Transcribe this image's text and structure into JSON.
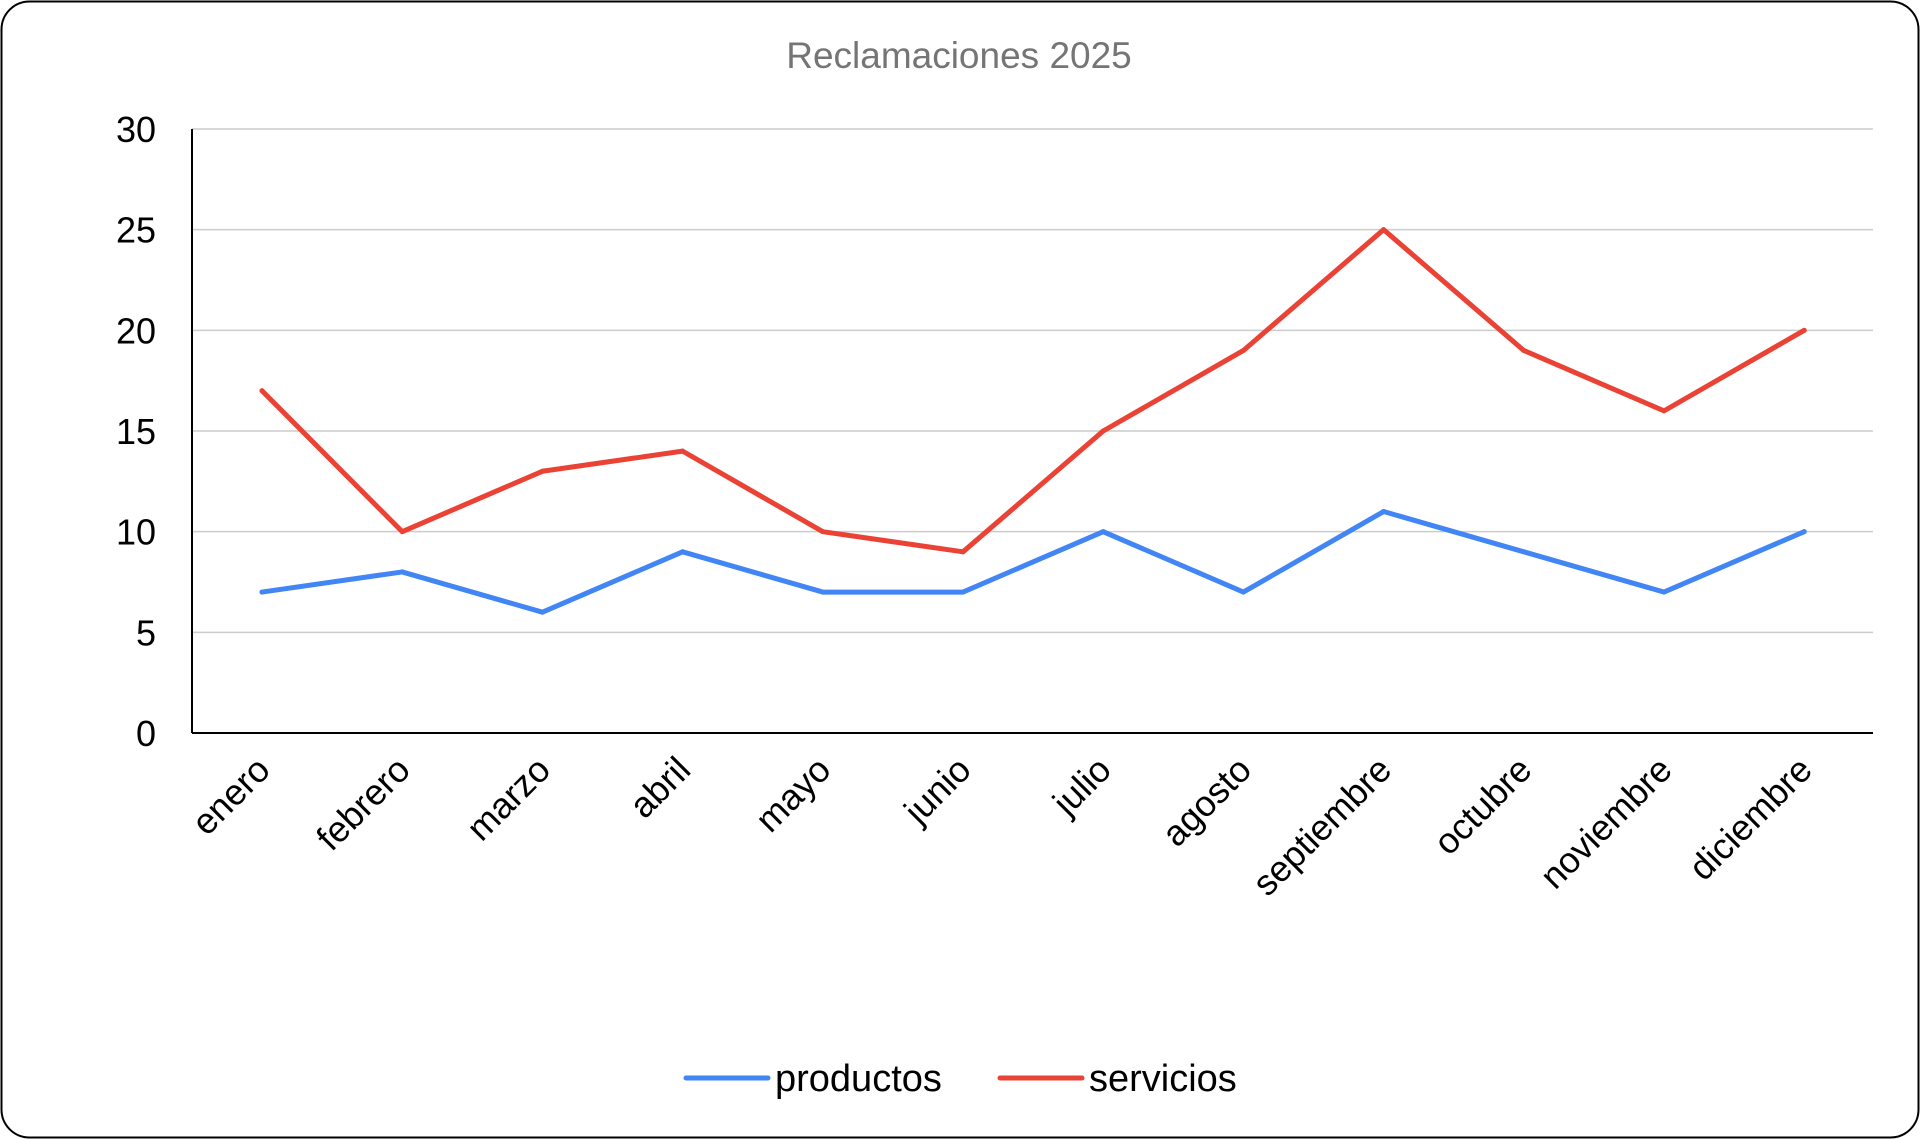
{
  "chart_data": {
    "type": "line",
    "title": "Reclamaciones 2025",
    "xlabel": "",
    "ylabel": "",
    "ylim": [
      0,
      30
    ],
    "yticks": [
      "0",
      "5",
      "10",
      "15",
      "20",
      "25",
      "30"
    ],
    "grid": true,
    "legend_position": "bottom",
    "categories": [
      "enero",
      "febrero",
      "marzo",
      "abril",
      "mayo",
      "junio",
      "julio",
      "agosto",
      "septiembre",
      "octubre",
      "noviembre",
      "diciembre"
    ],
    "series": [
      {
        "name": "productos",
        "color": "#4285f4",
        "values": [
          7,
          8,
          6,
          9,
          7,
          7,
          10,
          7,
          11,
          9,
          7,
          10
        ]
      },
      {
        "name": "servicios",
        "color": "#ea4335",
        "values": [
          17,
          10,
          13,
          14,
          10,
          9,
          15,
          19,
          25,
          19,
          16,
          20
        ]
      }
    ]
  }
}
